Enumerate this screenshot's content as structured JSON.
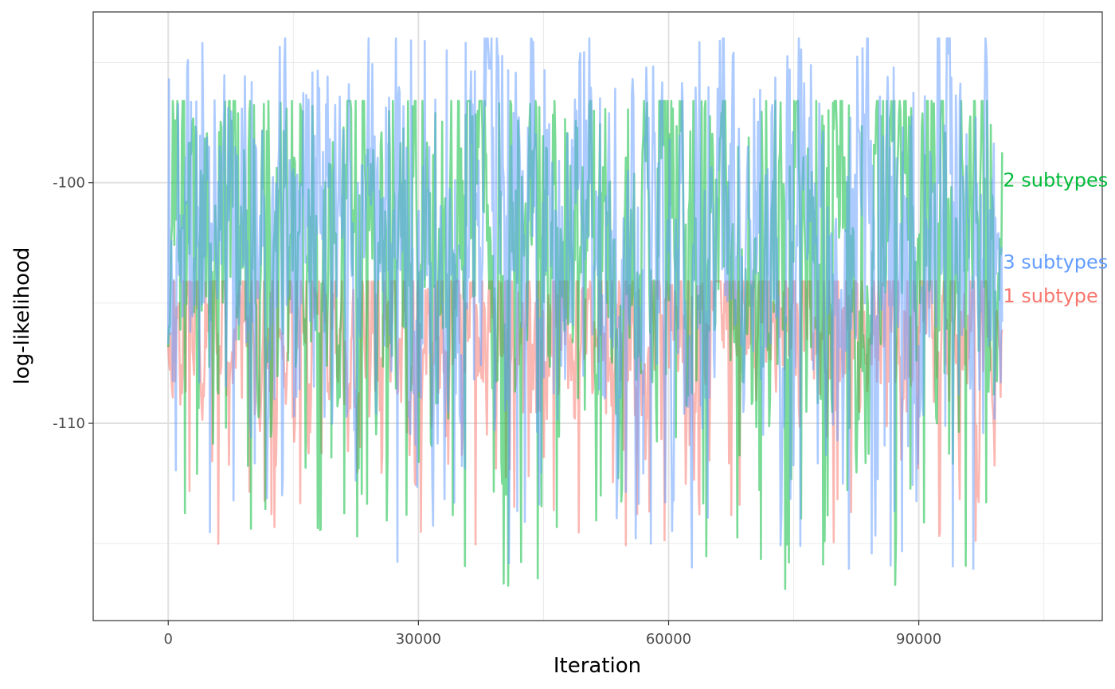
{
  "chart_data": {
    "type": "line",
    "title": "",
    "xlabel": "Iteration",
    "ylabel": "log-likelihood",
    "xlim": [
      -9000,
      112000
    ],
    "ylim": [
      -118.2,
      -92.9
    ],
    "x_ticks": [
      0,
      30000,
      60000,
      90000
    ],
    "x_tick_labels": [
      "0",
      "30000",
      "60000",
      "90000"
    ],
    "y_ticks": [
      -100,
      -110
    ],
    "y_tick_labels": [
      "-100",
      "-110"
    ],
    "grid": true,
    "legend": "none (series labelled at right end of lines)",
    "series": [
      {
        "name": "1 subtype",
        "color": "#F8766D",
        "label_value": -104.7,
        "x_range": [
          0,
          100000
        ],
        "typical_range": [
          -109.2,
          -104.1
        ],
        "mean": -106.2,
        "min": -115.1,
        "max": -104.1
      },
      {
        "name": "2 subtypes",
        "color": "#00BA38",
        "label_value": -99.9,
        "x_range": [
          0,
          100000
        ],
        "typical_range": [
          -107.5,
          -98.0
        ],
        "mean": -102.8,
        "min": -116.9,
        "max": -96.6
      },
      {
        "name": "3 subtypes",
        "color": "#619CFF",
        "label_value": -103.3,
        "x_range": [
          0,
          100000
        ],
        "typical_range": [
          -107.5,
          -97.8
        ],
        "mean": -102.6,
        "min": -116.2,
        "max": -94.0
      }
    ]
  }
}
